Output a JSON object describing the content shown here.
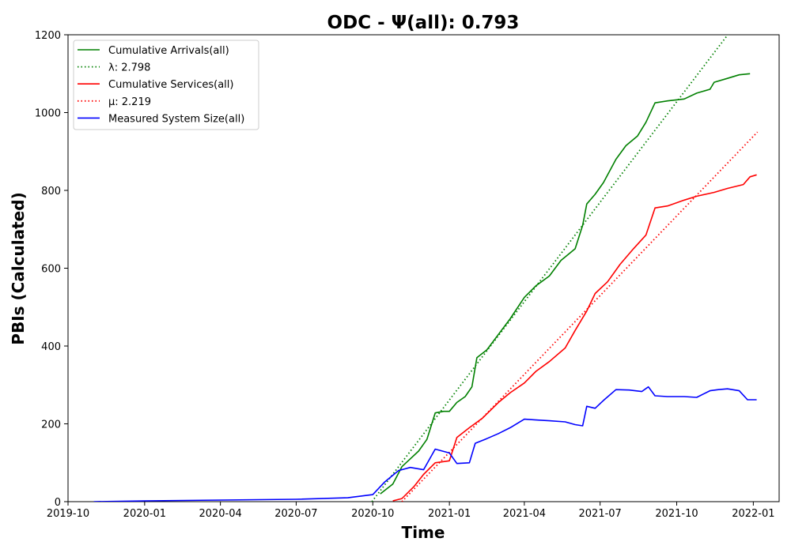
{
  "chart_data": {
    "type": "line",
    "title": "ODC -  Ψ(all): 0.793",
    "xlabel": "Time",
    "ylabel": "PBIs (Calculated)",
    "xlim": [
      "2019-10-01",
      "2022-02-01"
    ],
    "ylim": [
      0,
      1200
    ],
    "x_ticks": [
      "2019-10",
      "2020-01",
      "2020-04",
      "2020-07",
      "2020-10",
      "2021-01",
      "2021-04",
      "2021-07",
      "2021-10",
      "2022-01"
    ],
    "y_ticks": [
      0,
      200,
      400,
      600,
      800,
      1000,
      1200
    ],
    "grid": false,
    "legend_position": "upper-left",
    "series": [
      {
        "name": "Cumulative Arrivals(all)",
        "style": "solid",
        "color": "#008000",
        "points": [
          [
            "2020-10-10",
            20
          ],
          [
            "2020-10-25",
            45
          ],
          [
            "2020-11-05",
            90
          ],
          [
            "2020-11-15",
            110
          ],
          [
            "2020-11-25",
            130
          ],
          [
            "2020-12-05",
            160
          ],
          [
            "2020-12-15",
            228
          ],
          [
            "2020-12-25",
            232
          ],
          [
            "2021-01-01",
            232
          ],
          [
            "2021-01-10",
            255
          ],
          [
            "2021-01-20",
            270
          ],
          [
            "2021-01-28",
            295
          ],
          [
            "2021-02-03",
            370
          ],
          [
            "2021-02-15",
            390
          ],
          [
            "2021-03-01",
            430
          ],
          [
            "2021-03-15",
            470
          ],
          [
            "2021-04-01",
            525
          ],
          [
            "2021-04-15",
            555
          ],
          [
            "2021-05-01",
            580
          ],
          [
            "2021-05-15",
            620
          ],
          [
            "2021-06-01",
            650
          ],
          [
            "2021-06-10",
            710
          ],
          [
            "2021-06-15",
            765
          ],
          [
            "2021-06-25",
            790
          ],
          [
            "2021-07-05",
            820
          ],
          [
            "2021-07-20",
            880
          ],
          [
            "2021-08-01",
            915
          ],
          [
            "2021-08-15",
            940
          ],
          [
            "2021-08-25",
            975
          ],
          [
            "2021-09-05",
            1025
          ],
          [
            "2021-09-20",
            1030
          ],
          [
            "2021-10-10",
            1035
          ],
          [
            "2021-10-25",
            1050
          ],
          [
            "2021-11-10",
            1060
          ],
          [
            "2021-11-15",
            1078
          ],
          [
            "2021-12-01",
            1088
          ],
          [
            "2021-12-15",
            1097
          ],
          [
            "2021-12-28",
            1100
          ]
        ]
      },
      {
        "name": "λ: 2.798",
        "style": "dotted",
        "color": "#008000",
        "points": [
          [
            "2020-09-30",
            0
          ],
          [
            "2022-01-06",
            1300
          ]
        ]
      },
      {
        "name": "Cumulative Services(all)",
        "style": "solid",
        "color": "#ff0000",
        "points": [
          [
            "2020-10-25",
            2
          ],
          [
            "2020-11-05",
            8
          ],
          [
            "2020-11-20",
            40
          ],
          [
            "2020-12-01",
            70
          ],
          [
            "2020-12-15",
            100
          ],
          [
            "2021-01-01",
            105
          ],
          [
            "2021-01-10",
            165
          ],
          [
            "2021-01-25",
            190
          ],
          [
            "2021-02-10",
            215
          ],
          [
            "2021-03-01",
            255
          ],
          [
            "2021-03-15",
            280
          ],
          [
            "2021-04-01",
            305
          ],
          [
            "2021-04-15",
            335
          ],
          [
            "2021-05-01",
            360
          ],
          [
            "2021-05-20",
            395
          ],
          [
            "2021-06-01",
            440
          ],
          [
            "2021-06-15",
            490
          ],
          [
            "2021-06-25",
            535
          ],
          [
            "2021-07-10",
            565
          ],
          [
            "2021-07-25",
            610
          ],
          [
            "2021-08-10",
            650
          ],
          [
            "2021-08-25",
            685
          ],
          [
            "2021-09-05",
            755
          ],
          [
            "2021-09-20",
            760
          ],
          [
            "2021-10-10",
            775
          ],
          [
            "2021-10-25",
            785
          ],
          [
            "2021-11-15",
            795
          ],
          [
            "2021-12-01",
            805
          ],
          [
            "2021-12-20",
            815
          ],
          [
            "2021-12-28",
            835
          ],
          [
            "2022-01-05",
            840
          ]
        ]
      },
      {
        "name": "μ: 2.219",
        "style": "dotted",
        "color": "#ff0000",
        "points": [
          [
            "2020-11-05",
            0
          ],
          [
            "2022-01-06",
            950
          ]
        ]
      },
      {
        "name": "Measured System Size(all)",
        "style": "solid",
        "color": "#0000ff",
        "points": [
          [
            "2019-11-01",
            0
          ],
          [
            "2020-01-01",
            2
          ],
          [
            "2020-04-01",
            4
          ],
          [
            "2020-07-01",
            6
          ],
          [
            "2020-09-01",
            10
          ],
          [
            "2020-10-01",
            18
          ],
          [
            "2020-10-15",
            50
          ],
          [
            "2020-11-01",
            80
          ],
          [
            "2020-11-15",
            88
          ],
          [
            "2020-12-01",
            82
          ],
          [
            "2020-12-15",
            135
          ],
          [
            "2021-01-01",
            125
          ],
          [
            "2021-01-10",
            98
          ],
          [
            "2021-01-25",
            100
          ],
          [
            "2021-02-01",
            150
          ],
          [
            "2021-02-15",
            162
          ],
          [
            "2021-03-01",
            175
          ],
          [
            "2021-03-15",
            190
          ],
          [
            "2021-04-01",
            212
          ],
          [
            "2021-04-15",
            210
          ],
          [
            "2021-05-01",
            208
          ],
          [
            "2021-05-20",
            205
          ],
          [
            "2021-06-01",
            198
          ],
          [
            "2021-06-10",
            195
          ],
          [
            "2021-06-15",
            245
          ],
          [
            "2021-06-25",
            240
          ],
          [
            "2021-07-05",
            260
          ],
          [
            "2021-07-20",
            288
          ],
          [
            "2021-08-05",
            287
          ],
          [
            "2021-08-20",
            283
          ],
          [
            "2021-08-28",
            295
          ],
          [
            "2021-09-05",
            272
          ],
          [
            "2021-09-20",
            270
          ],
          [
            "2021-10-10",
            270
          ],
          [
            "2021-10-25",
            268
          ],
          [
            "2021-11-10",
            285
          ],
          [
            "2021-11-20",
            288
          ],
          [
            "2021-12-01",
            290
          ],
          [
            "2021-12-15",
            285
          ],
          [
            "2021-12-25",
            262
          ],
          [
            "2022-01-05",
            262
          ]
        ]
      }
    ]
  }
}
